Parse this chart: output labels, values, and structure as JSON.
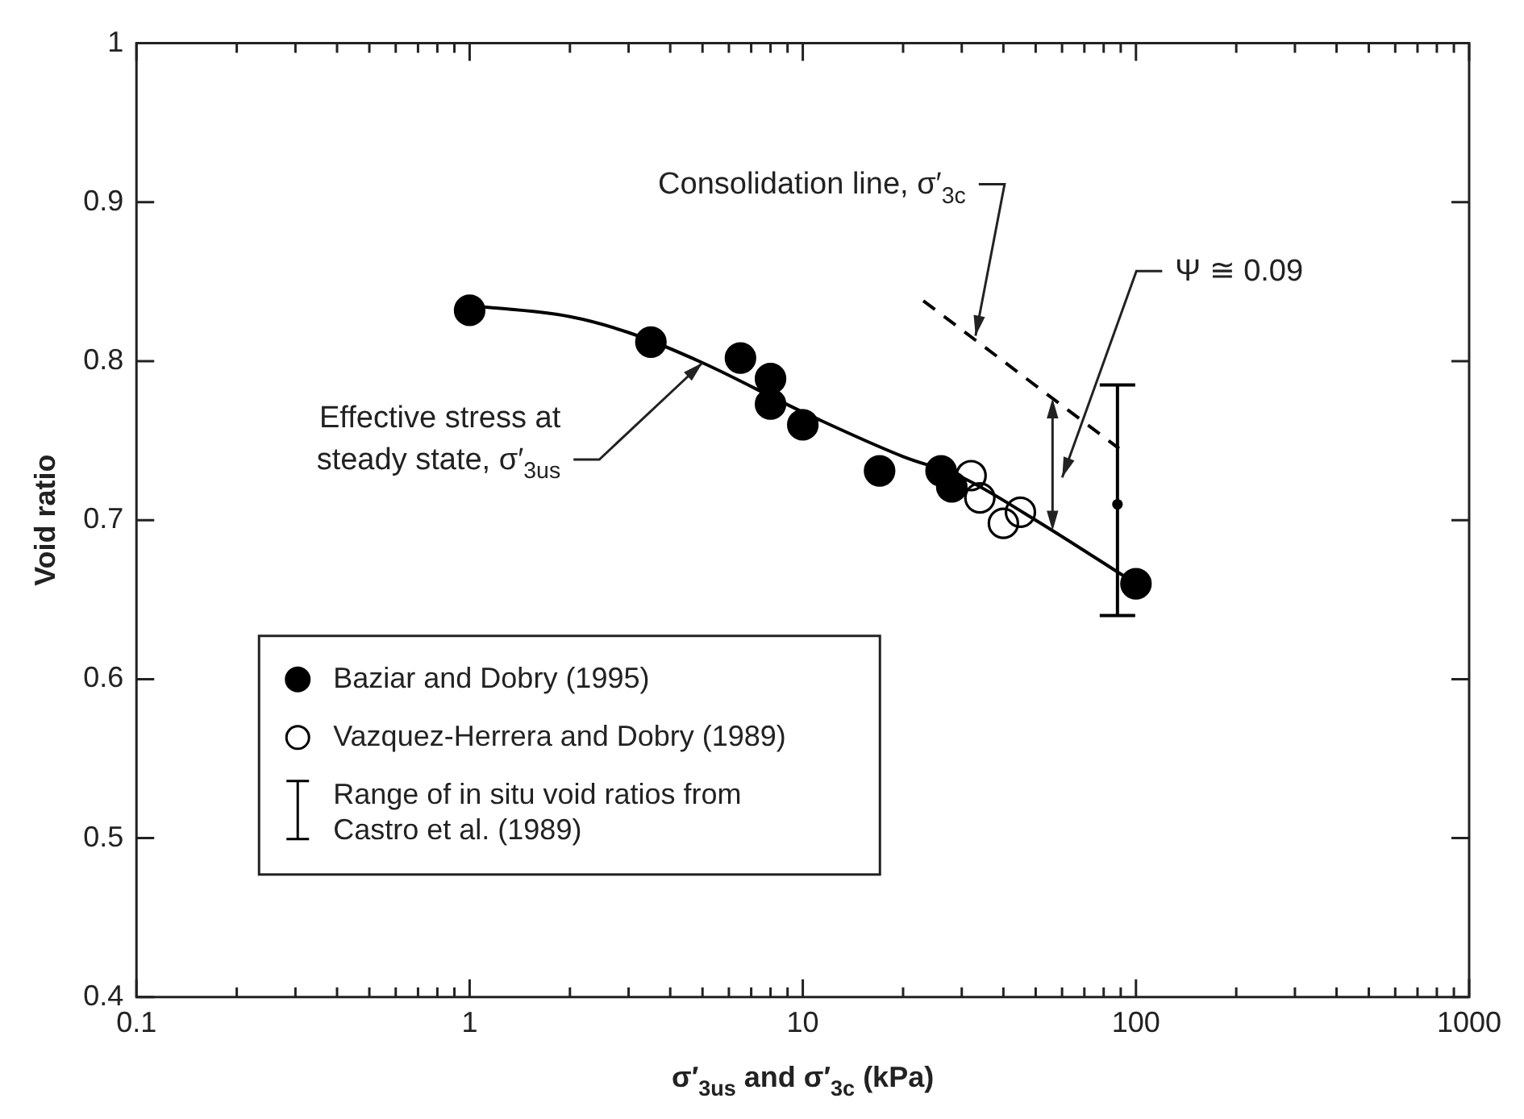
{
  "chart_data": {
    "type": "scatter",
    "xlabel": "σ′$_{3us}$ and σ′$_{3c}$ (kPa)",
    "ylabel": "Void ratio",
    "log": "x",
    "xlim": [
      0.1,
      1000
    ],
    "ylim": [
      0.4,
      1
    ],
    "xticks": [
      0.1,
      {
        "value": 0.2,
        "label": null
      },
      {
        "value": 0.3,
        "label": null
      },
      {
        "value": 0.4,
        "label": null
      },
      {
        "value": 0.5,
        "label": null
      },
      {
        "value": 0.6,
        "label": null
      },
      {
        "value": 0.7,
        "label": null
      },
      {
        "value": 0.8,
        "label": null
      },
      {
        "value": 0.9,
        "label": null
      },
      1,
      {
        "value": 2,
        "label": null
      },
      {
        "value": 3,
        "label": null
      },
      {
        "value": 4,
        "label": null
      },
      {
        "value": 5,
        "label": null
      },
      {
        "value": 6,
        "label": null
      },
      {
        "value": 7,
        "label": null
      },
      {
        "value": 8,
        "label": null
      },
      {
        "value": 9,
        "label": null
      },
      10,
      {
        "value": 20,
        "label": null
      },
      {
        "value": 30,
        "label": null
      },
      {
        "value": 40,
        "label": null
      },
      {
        "value": 50,
        "label": null
      },
      {
        "value": 60,
        "label": null
      },
      {
        "value": 70,
        "label": null
      },
      {
        "value": 80,
        "label": null
      },
      {
        "value": 90,
        "label": null
      },
      100,
      {
        "value": 200,
        "label": null
      },
      {
        "value": 300,
        "label": null
      },
      {
        "value": 400,
        "label": null
      },
      {
        "value": 500,
        "label": null
      },
      {
        "value": 600,
        "label": null
      },
      {
        "value": 700,
        "label": null
      },
      {
        "value": 800,
        "label": null
      },
      {
        "value": 900,
        "label": null
      },
      1000
    ],
    "yticks": [
      0.4,
      0.5,
      0.6,
      0.7,
      0.8,
      0.9,
      1
    ],
    "marker": "circle",
    "legend": "bottom left",
    "series": [
      {
        "name": "Baziar and Dobry (1995)",
        "color": "#000000",
        "x": [
          1,
          3.5,
          6.5,
          8,
          8,
          10,
          17,
          26,
          28,
          100
        ],
        "values": [
          0.832,
          0.812,
          0.802,
          0.789,
          0.773,
          0.76,
          0.731,
          0.731,
          0.721,
          0.66
        ]
      },
      {
        "name": "Vazquez-Herrera and Dobry (1989)",
        "color": "#000000",
        "x": [
          32,
          34,
          40,
          45
        ],
        "values": [
          0.728,
          0.714,
          0.698,
          0.705
        ]
      },
      {
        "type": "line",
        "color": "#000000",
        "marker": "none",
        "line_style": "solid",
        "x": [
          1,
          2,
          3,
          5,
          10,
          20,
          30,
          50,
          100
        ],
        "values": [
          0.835,
          0.828,
          0.818,
          0.799,
          0.768,
          0.74,
          0.727,
          0.7,
          0.66
        ]
      },
      {
        "type": "line",
        "color": "#000000",
        "marker": "none",
        "line_style": "dashed",
        "x": [
          23,
          89
        ],
        "values": [
          0.838,
          0.745
        ]
      },
      {
        "name": "Range of in situ void ratios from Castro et al. (1989)",
        "color": "#000000",
        "x": [
          88
        ],
        "values": [
          0.71
        ],
        "errors": [
          [
            0.64,
            0.785
          ]
        ]
      }
    ],
    "annotations": [
      {
        "text": "Consolidation line, σ′$_{3c}$",
        "x": 33,
        "y": 0.816
      },
      "Ψ ≅ 0.09",
      {
        "text": "Effective stress at\nsteady state, σ′$_{3us}$",
        "x": 5,
        "y": 0.799
      }
    ]
  }
}
